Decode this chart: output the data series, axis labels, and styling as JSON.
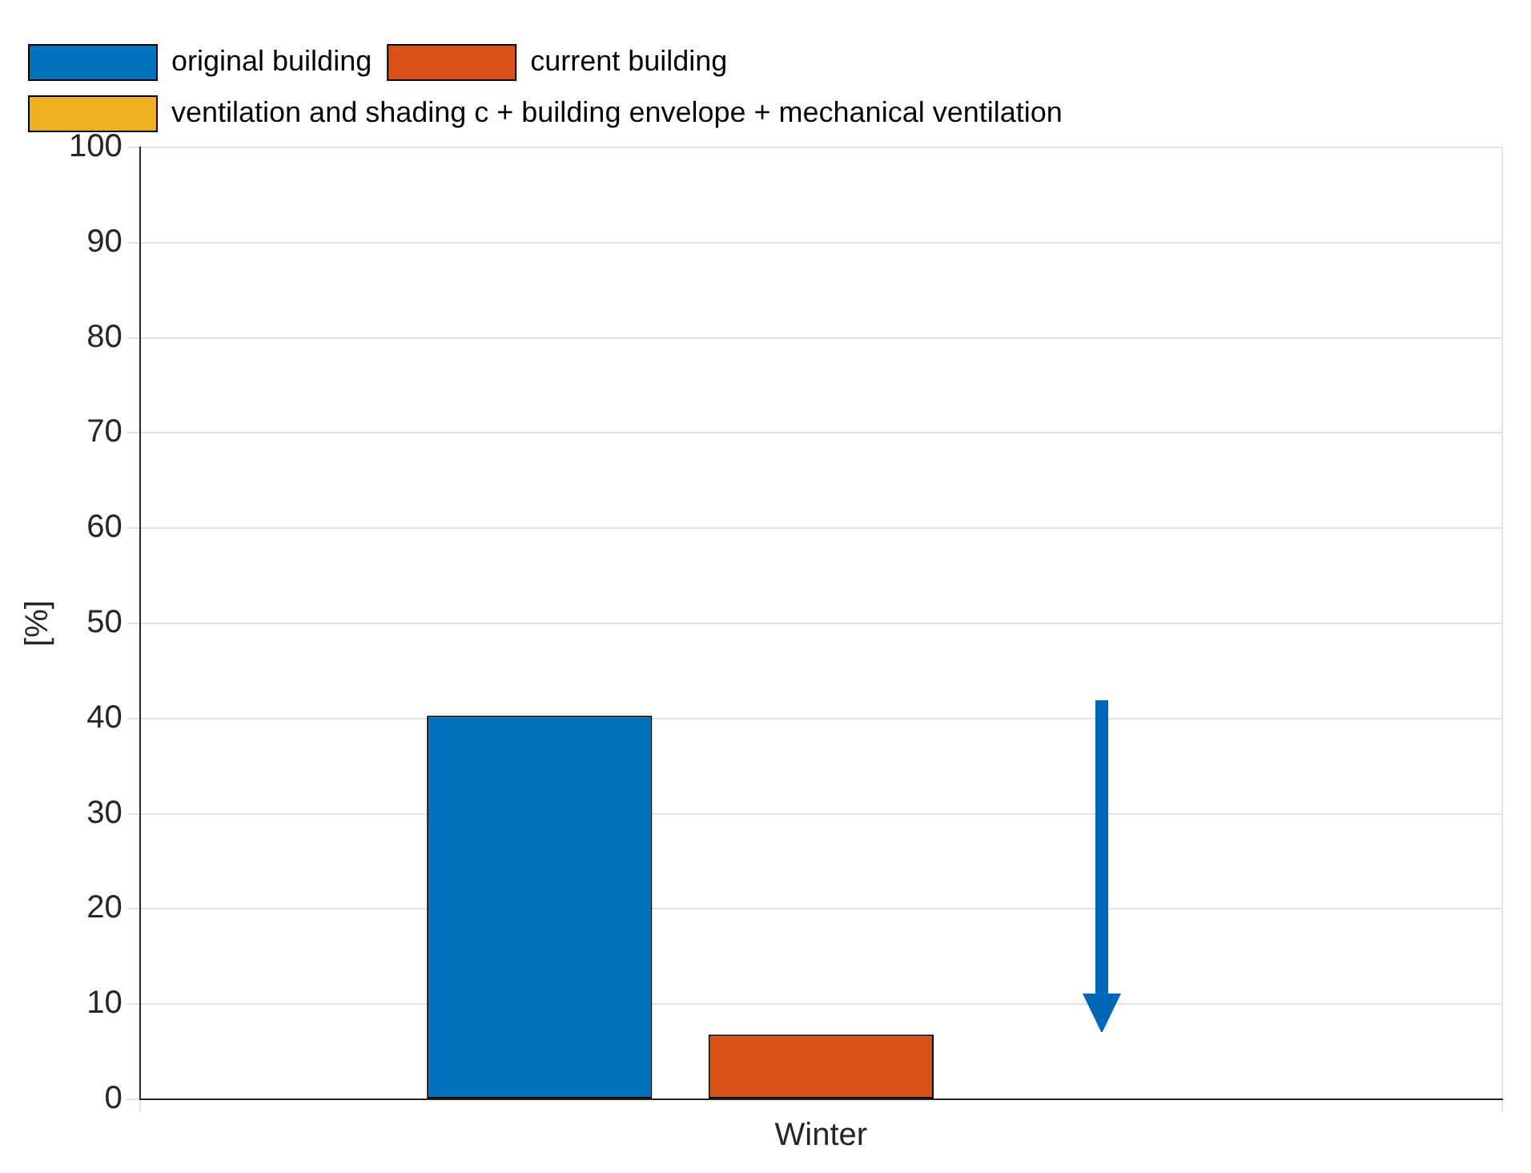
{
  "chart_data": {
    "type": "bar",
    "categories": [
      "Winter"
    ],
    "ylabel": "[%]",
    "ylim": [
      0,
      100
    ],
    "yticks": [
      0,
      10,
      20,
      30,
      40,
      50,
      60,
      70,
      80,
      90,
      100
    ],
    "grid": true,
    "legend": "top left",
    "series": [
      {
        "name": "original building",
        "color": "#0072bd",
        "values": [
          40.3
        ]
      },
      {
        "name": "current building",
        "color": "#d95319",
        "values": [
          6.8
        ]
      },
      {
        "name": "ventilation and shading c + building envelope + mechanical ventilation",
        "color": "#edb120",
        "values": [
          0
        ]
      }
    ]
  }
}
